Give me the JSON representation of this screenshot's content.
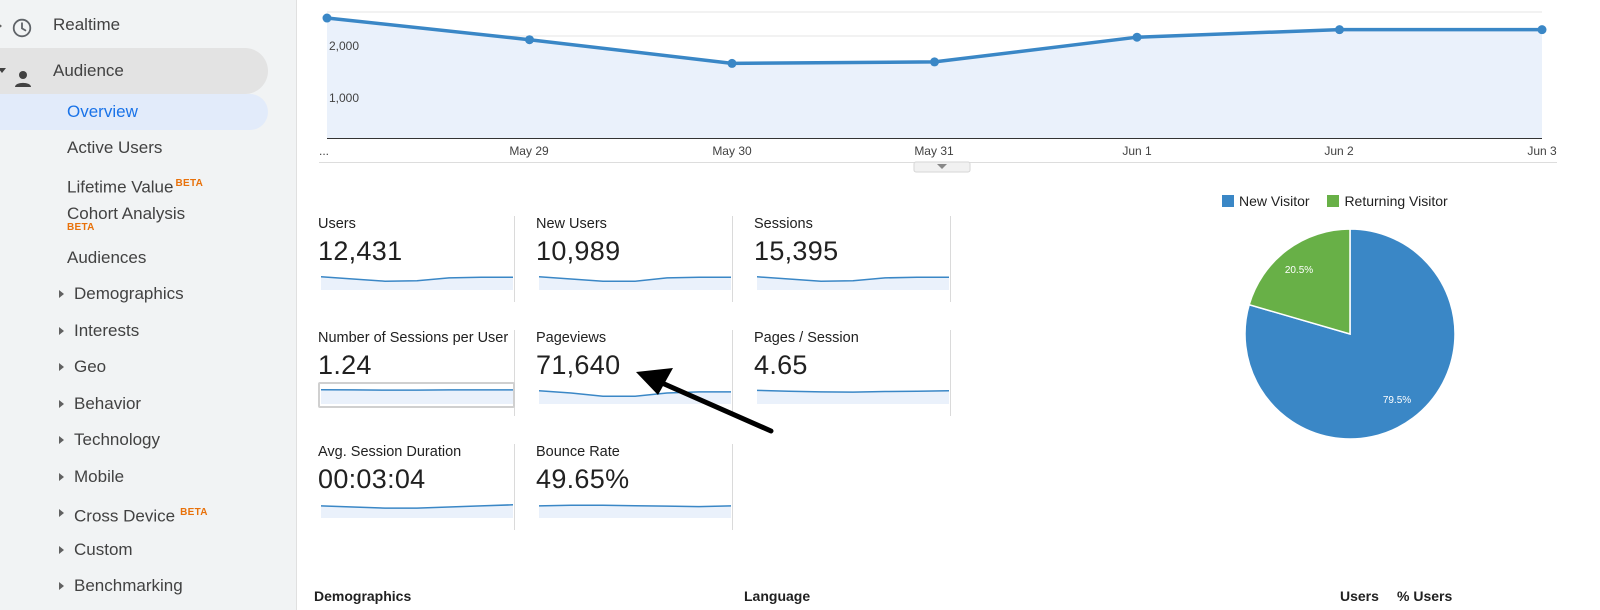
{
  "sidebar": {
    "realtime": "Realtime",
    "audience": "Audience",
    "items": [
      {
        "label": "Overview"
      },
      {
        "label": "Active Users"
      },
      {
        "label": "Lifetime Value",
        "badge": "BETA"
      },
      {
        "label": "Cohort Analysis",
        "badge": "BETA"
      },
      {
        "label": "Audiences"
      },
      {
        "label": "Demographics"
      },
      {
        "label": "Interests"
      },
      {
        "label": "Geo"
      },
      {
        "label": "Behavior"
      },
      {
        "label": "Technology"
      },
      {
        "label": "Mobile"
      },
      {
        "label": "Cross Device",
        "badge": "BETA"
      },
      {
        "label": "Custom"
      },
      {
        "label": "Benchmarking"
      }
    ]
  },
  "main_chart": {
    "y_ticks": [
      "2,000",
      "1,000"
    ],
    "x_labels": [
      "...",
      "May 29",
      "May 30",
      "May 31",
      "Jun 1",
      "Jun 2",
      "Jun 3"
    ],
    "values": [
      2380,
      1950,
      1480,
      1510,
      2000,
      2150,
      2150
    ],
    "ylim": [
      0,
      2500
    ],
    "line_color": "#3a87c6",
    "fill_color": "#eaf1fb"
  },
  "metrics": [
    {
      "name": "Users",
      "value": "12,431",
      "spark": [
        0.6,
        0.5,
        0.4,
        0.42,
        0.55,
        0.58,
        0.58
      ]
    },
    {
      "name": "New Users",
      "value": "10,989",
      "spark": [
        0.6,
        0.5,
        0.4,
        0.4,
        0.55,
        0.58,
        0.58
      ]
    },
    {
      "name": "Sessions",
      "value": "15,395",
      "spark": [
        0.6,
        0.5,
        0.4,
        0.42,
        0.55,
        0.58,
        0.58
      ]
    },
    {
      "name": "Number of Sessions per User",
      "value": "1.24",
      "spark": [
        0.65,
        0.64,
        0.63,
        0.63,
        0.64,
        0.64,
        0.64
      ]
    },
    {
      "name": "Pageviews",
      "value": "71,640",
      "spark": [
        0.6,
        0.5,
        0.35,
        0.35,
        0.5,
        0.55,
        0.55
      ]
    },
    {
      "name": "Pages / Session",
      "value": "4.65",
      "spark": [
        0.62,
        0.58,
        0.55,
        0.54,
        0.57,
        0.58,
        0.6
      ]
    },
    {
      "name": "Avg. Session Duration",
      "value": "00:03:04",
      "spark": [
        0.55,
        0.5,
        0.45,
        0.45,
        0.5,
        0.55,
        0.6
      ]
    },
    {
      "name": "Bounce Rate",
      "value": "49.65%",
      "spark": [
        0.55,
        0.58,
        0.58,
        0.56,
        0.54,
        0.52,
        0.55
      ]
    }
  ],
  "legend": [
    {
      "label": "New Visitor",
      "color": "#3a87c6"
    },
    {
      "label": "Returning Visitor",
      "color": "#68b047"
    }
  ],
  "chart_data": {
    "type": "pie",
    "slices": [
      {
        "label": "New Visitor",
        "value": 79.5,
        "color": "#3a87c6"
      },
      {
        "label": "Returning Visitor",
        "value": 20.5,
        "color": "#68b047"
      }
    ],
    "data_labels": [
      "79.5%",
      "20.5%"
    ]
  },
  "bottom": {
    "demographics": "Demographics",
    "language": "Language",
    "users": "Users",
    "pct_users": "% Users"
  }
}
